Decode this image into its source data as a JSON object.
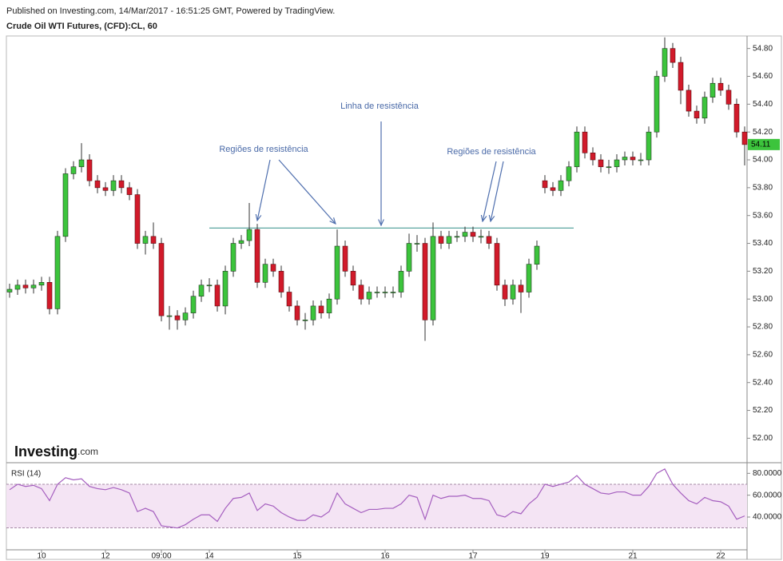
{
  "header": {
    "published": "Published on Investing.com, 14/Mar/2017 - 16:51:25 GMT, Powered by TradingView.",
    "symbol": "Crude Oil WTI Futures, (CFD):CL, 60"
  },
  "logo": {
    "brand": "Investing",
    "suffix": ".com"
  },
  "chart_data": [
    {
      "type": "candlestick",
      "up_color": "#3cc43c",
      "down_color": "#d11a2a",
      "outline_color": "#1f3a1f",
      "categories": [
        null,
        null,
        null,
        null,
        "10",
        null,
        null,
        null,
        null,
        null,
        null,
        null,
        "12",
        null,
        null,
        null,
        null,
        null,
        null,
        "09:00",
        null,
        null,
        null,
        null,
        null,
        "14",
        null,
        null,
        null,
        null,
        null,
        null,
        null,
        null,
        null,
        null,
        "15",
        null,
        null,
        null,
        null,
        null,
        null,
        null,
        null,
        null,
        null,
        "16",
        null,
        null,
        null,
        null,
        null,
        null,
        null,
        null,
        null,
        null,
        "17",
        null,
        null,
        null,
        null,
        null,
        null,
        null,
        null,
        "19",
        null,
        null,
        null,
        null,
        null,
        null,
        null,
        null,
        null,
        null,
        "21",
        null,
        null,
        null,
        null,
        null,
        null,
        null,
        null,
        null,
        null,
        "22",
        null,
        null,
        null
      ],
      "open": [
        53.05,
        53.07,
        53.1,
        53.08,
        53.1,
        53.12,
        52.93,
        53.45,
        53.9,
        53.95,
        54.0,
        53.85,
        53.8,
        53.78,
        53.85,
        53.8,
        53.75,
        53.4,
        53.45,
        53.4,
        52.88,
        52.88,
        52.85,
        52.9,
        53.02,
        53.1,
        53.1,
        52.95,
        53.2,
        53.4,
        53.42,
        53.5,
        53.12,
        53.25,
        53.2,
        53.05,
        52.95,
        52.85,
        52.85,
        52.95,
        52.9,
        53.0,
        53.38,
        53.2,
        53.1,
        53.0,
        53.05,
        53.05,
        53.05,
        53.05,
        53.2,
        53.4,
        53.4,
        52.85,
        53.45,
        53.4,
        53.45,
        53.45,
        53.48,
        53.45,
        53.45,
        53.4,
        53.1,
        53.0,
        53.1,
        53.05,
        53.25,
        53.85,
        53.8,
        53.78,
        53.85,
        53.95,
        54.2,
        54.05,
        54.0,
        53.95,
        53.95,
        54.0,
        54.02,
        54.0,
        54.0,
        54.2,
        54.6,
        54.8,
        54.7,
        54.5,
        54.35,
        54.3,
        54.45,
        54.55,
        54.5,
        54.4,
        54.2
      ],
      "high": [
        53.11,
        53.14,
        53.14,
        53.14,
        53.16,
        53.16,
        53.49,
        53.94,
        53.99,
        54.12,
        54.04,
        53.89,
        53.84,
        53.89,
        53.89,
        53.84,
        53.79,
        53.49,
        53.55,
        53.44,
        52.95,
        52.92,
        52.94,
        53.06,
        53.14,
        53.15,
        53.14,
        53.24,
        53.44,
        53.46,
        53.69,
        53.54,
        53.29,
        53.29,
        53.24,
        53.09,
        52.99,
        52.9,
        52.99,
        52.99,
        53.04,
        53.5,
        53.42,
        53.24,
        53.14,
        53.09,
        53.09,
        53.09,
        53.09,
        53.24,
        53.47,
        53.46,
        53.44,
        53.55,
        53.49,
        53.49,
        53.49,
        53.52,
        53.52,
        53.5,
        53.49,
        53.44,
        53.14,
        53.14,
        53.14,
        53.29,
        53.42,
        53.89,
        53.84,
        53.89,
        53.99,
        54.24,
        54.24,
        54.09,
        54.04,
        54.0,
        54.04,
        54.06,
        54.06,
        54.05,
        54.24,
        54.64,
        54.88,
        54.84,
        54.74,
        54.54,
        54.39,
        54.49,
        54.59,
        54.59,
        54.54,
        54.44,
        54.24
      ],
      "low": [
        53.01,
        53.03,
        53.04,
        53.04,
        53.06,
        52.89,
        52.89,
        53.41,
        53.86,
        53.91,
        53.81,
        53.76,
        53.74,
        53.74,
        53.76,
        53.71,
        53.36,
        53.32,
        53.36,
        52.84,
        52.78,
        52.78,
        52.81,
        52.86,
        52.98,
        53.05,
        52.91,
        52.89,
        53.16,
        53.36,
        53.38,
        53.08,
        53.08,
        53.16,
        53.01,
        52.91,
        52.81,
        52.78,
        52.81,
        52.86,
        52.86,
        52.96,
        53.16,
        53.06,
        52.96,
        52.96,
        53.01,
        53.01,
        53.01,
        53.01,
        53.16,
        53.34,
        52.7,
        52.81,
        53.36,
        53.36,
        53.41,
        53.41,
        53.41,
        53.4,
        53.36,
        53.06,
        52.95,
        52.96,
        52.9,
        53.01,
        53.21,
        53.76,
        53.74,
        53.74,
        53.81,
        53.91,
        54.01,
        53.96,
        53.91,
        53.9,
        53.91,
        53.96,
        53.96,
        53.96,
        53.96,
        54.16,
        54.56,
        54.66,
        54.4,
        54.31,
        54.26,
        54.26,
        54.41,
        54.46,
        54.36,
        54.16,
        53.96
      ],
      "close": [
        53.07,
        53.1,
        53.08,
        53.1,
        53.12,
        52.93,
        53.45,
        53.9,
        53.95,
        54.0,
        53.85,
        53.8,
        53.78,
        53.85,
        53.8,
        53.75,
        53.4,
        53.45,
        53.4,
        52.88,
        52.88,
        52.85,
        52.9,
        53.02,
        53.1,
        53.1,
        52.95,
        53.2,
        53.4,
        53.42,
        53.5,
        53.12,
        53.25,
        53.2,
        53.05,
        52.95,
        52.85,
        52.85,
        52.95,
        52.9,
        53.0,
        53.38,
        53.2,
        53.1,
        53.0,
        53.05,
        53.05,
        53.05,
        53.05,
        53.2,
        53.4,
        53.4,
        52.85,
        53.45,
        53.4,
        53.45,
        53.45,
        53.48,
        53.45,
        53.45,
        53.4,
        53.1,
        53.0,
        53.1,
        53.05,
        53.25,
        53.38,
        53.8,
        53.78,
        53.85,
        53.95,
        54.2,
        54.05,
        54.0,
        53.95,
        53.95,
        54.0,
        54.02,
        54.0,
        54.0,
        54.2,
        54.6,
        54.8,
        54.7,
        54.5,
        54.35,
        54.3,
        54.45,
        54.55,
        54.5,
        54.4,
        54.2,
        54.11
      ],
      "ylim": [
        51.83,
        54.89
      ],
      "yticks": [
        {
          "value": 52,
          "label": "52.00"
        },
        {
          "value": 52.2,
          "label": "52.20"
        },
        {
          "value": 52.4,
          "label": "52.40"
        },
        {
          "value": 52.6,
          "label": "52.60"
        },
        {
          "value": 52.8,
          "label": "52.80"
        },
        {
          "value": 53,
          "label": "53.00"
        },
        {
          "value": 53.2,
          "label": "53.20"
        },
        {
          "value": 53.4,
          "label": "53.40"
        },
        {
          "value": 53.6,
          "label": "53.60"
        },
        {
          "value": 53.8,
          "label": "53.80"
        },
        {
          "value": 54,
          "label": "54.00"
        },
        {
          "value": 54.2,
          "label": "54.20"
        },
        {
          "value": 54.4,
          "label": "54.40"
        },
        {
          "value": 54.6,
          "label": "54.60"
        },
        {
          "value": 54.8,
          "label": "54.80"
        }
      ],
      "grid": false,
      "resistance_line": {
        "value": 53.51,
        "start": 25,
        "end": 70.6,
        "color": "#5aa6a0"
      },
      "annotations": [
        {
          "text": "Regiões de resistência"
        },
        {
          "text": "Linha de resistência"
        },
        {
          "text": "Regiões de resistência"
        }
      ]
    },
    {
      "type": "line",
      "title": "RSI (14)",
      "color": "#a55fbf",
      "band_color": "#f4e4f4",
      "values": [
        65,
        70,
        68,
        69,
        66,
        55,
        70,
        76,
        74,
        75,
        68,
        66,
        65,
        67,
        65,
        62,
        45,
        48,
        45,
        32,
        31,
        30,
        33,
        38,
        42,
        42,
        36,
        48,
        57,
        58,
        62,
        46,
        52,
        50,
        44,
        40,
        37,
        37,
        42,
        40,
        45,
        62,
        52,
        48,
        44,
        47,
        47,
        48,
        48,
        52,
        60,
        58,
        38,
        60,
        57,
        59,
        59,
        60,
        57,
        57,
        55,
        42,
        40,
        45,
        43,
        52,
        58,
        70,
        68,
        70,
        72,
        78,
        70,
        66,
        62,
        61,
        63,
        63,
        60,
        60,
        68,
        80,
        84,
        70,
        62,
        55,
        52,
        58,
        55,
        54,
        50,
        38,
        41
      ],
      "bands": [
        30,
        70
      ],
      "ylim": [
        10,
        89
      ],
      "yticks": [
        {
          "value": 40,
          "label": "40.0000"
        },
        {
          "value": 60,
          "label": "60.0000"
        },
        {
          "value": 80,
          "label": "80.0000"
        }
      ]
    }
  ]
}
